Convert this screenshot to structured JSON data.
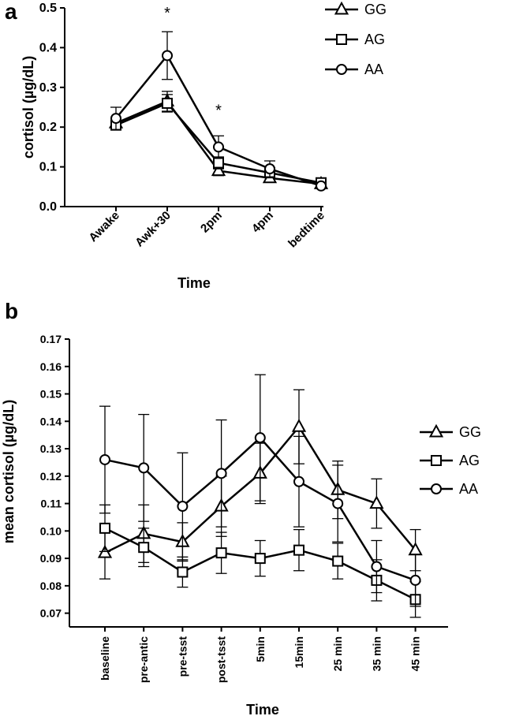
{
  "chart_data": [
    {
      "panel": "a",
      "type": "line",
      "xlabel": "Time",
      "ylabel": "cortisol (µg/dL)",
      "categories": [
        "Awake",
        "Awk+30",
        "2pm",
        "4pm",
        "bedtime"
      ],
      "ylim": [
        0,
        0.5
      ],
      "yticks": [
        "0.0",
        "0.1",
        "0.2",
        "0.3",
        "0.4",
        "0.5"
      ],
      "legend_position": "top-right",
      "annotations": [
        {
          "text": "*",
          "category": "Awk+30",
          "y": 0.49
        },
        {
          "text": "*",
          "category": "2pm",
          "y": 0.245
        }
      ],
      "series": [
        {
          "name": "GG",
          "marker": "triangle",
          "values": [
            0.21,
            0.265,
            0.09,
            0.072,
            0.057
          ],
          "err": [
            0.012,
            0.025,
            0.012,
            0.01,
            0.005
          ]
        },
        {
          "name": "AG",
          "marker": "square",
          "values": [
            0.205,
            0.26,
            0.11,
            0.085,
            0.06
          ],
          "err": [
            0.012,
            0.022,
            0.015,
            0.012,
            0.006
          ]
        },
        {
          "name": "AA",
          "marker": "circle",
          "values": [
            0.222,
            0.38,
            0.15,
            0.095,
            0.052
          ],
          "err": [
            0.028,
            0.06,
            0.028,
            0.02,
            0.007
          ]
        }
      ]
    },
    {
      "panel": "b",
      "type": "line",
      "xlabel": "Time",
      "ylabel": "mean cortisol (µg/dL)",
      "categories": [
        "baseline",
        "pre-antic",
        "pre-tsst",
        "post-tsst",
        "5min",
        "15min",
        "25 min",
        "35 min",
        "45 min"
      ],
      "ylim": [
        0.065,
        0.17
      ],
      "yticks": [
        "0.07",
        "0.08",
        "0.09",
        "0.10",
        "0.11",
        "0.12",
        "0.13",
        "0.14",
        "0.15",
        "0.16",
        "0.17"
      ],
      "legend_position": "right",
      "series": [
        {
          "name": "GG",
          "marker": "triangle",
          "values": [
            0.092,
            0.099,
            0.096,
            0.109,
            0.121,
            0.138,
            0.115,
            0.11,
            0.093
          ],
          "err": [
            0.0095,
            0.0105,
            0.007,
            0.011,
            0.011,
            0.0135,
            0.0105,
            0.009,
            0.0075
          ]
        },
        {
          "name": "AG",
          "marker": "square",
          "values": [
            0.101,
            0.094,
            0.085,
            0.092,
            0.09,
            0.093,
            0.089,
            0.082,
            0.075
          ],
          "err": [
            0.0085,
            0.007,
            0.0055,
            0.0075,
            0.0065,
            0.0075,
            0.0065,
            0.0075,
            0.0065
          ]
        },
        {
          "name": "AA",
          "marker": "circle",
          "values": [
            0.126,
            0.123,
            0.109,
            0.121,
            0.134,
            0.118,
            0.11,
            0.087,
            0.082
          ],
          "err": [
            0.0195,
            0.0195,
            0.0195,
            0.0195,
            0.023,
            0.0165,
            0.014,
            0.0095,
            0.0095
          ]
        }
      ]
    }
  ]
}
